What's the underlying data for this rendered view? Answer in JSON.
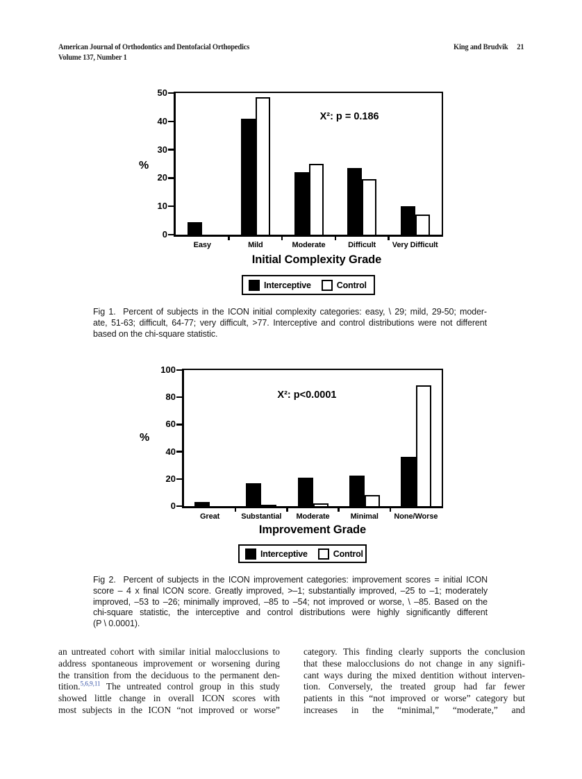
{
  "header": {
    "journal": "American Journal of Orthodontics and Dentofacial Orthopedics",
    "volume": "Volume 137, Number 1",
    "running_head": "King and Brudvik",
    "page_number": "21"
  },
  "chart_data": [
    {
      "type": "bar",
      "categories": [
        "Easy",
        "Mild",
        "Moderate",
        "Difficult",
        "Very Difficult"
      ],
      "series": [
        {
          "name": "Interceptive",
          "values": [
            4.5,
            41,
            22,
            23.5,
            10
          ]
        },
        {
          "name": "Control",
          "values": [
            0,
            48.5,
            25,
            19.5,
            7
          ]
        }
      ],
      "annotation": "X²: p = 0.186",
      "xlabel": "Initial Complexity Grade",
      "ylabel": "%",
      "ylim": [
        0,
        50
      ],
      "yticks": [
        0,
        10,
        20,
        30,
        40,
        50
      ],
      "legend_position": "bottom",
      "grid": false,
      "colors": {
        "Interceptive": "#000000",
        "Control": "#ffffff"
      }
    },
    {
      "type": "bar",
      "categories": [
        "Great",
        "Substantial",
        "Moderate",
        "Minimal",
        "None/Worse"
      ],
      "series": [
        {
          "name": "Interceptive",
          "values": [
            3,
            17,
            21,
            22.5,
            36
          ]
        },
        {
          "name": "Control",
          "values": [
            0,
            1,
            2,
            8,
            89
          ]
        }
      ],
      "annotation": "X²: p<0.0001",
      "xlabel": "Improvement Grade",
      "ylabel": "%",
      "ylim": [
        0,
        100
      ],
      "yticks": [
        0,
        20,
        40,
        60,
        80,
        100
      ],
      "legend_position": "bottom",
      "grid": false,
      "colors": {
        "Interceptive": "#000000",
        "Control": "#ffffff"
      }
    }
  ],
  "figures": {
    "fig1_caption_lines": [
      "Fig 1.  Percent of subjects in the ICON initial complexity categories: easy, \\ 29; mild, 29-50; moder-",
      "ate, 51-63; difficult, 64-77; very difficult, >77. Interceptive and control distributions were not different",
      "based on the chi-square statistic."
    ],
    "fig2_caption_lines": [
      "Fig 2.  Percent of subjects in the ICON improvement categories: improvement scores = initial ICON",
      "score – 4 x final ICON score. Greatly improved, >–1; substantially improved, –25 to –1; moderately",
      "improved, –53 to –26; minimally improved, –85 to –54; not improved or worse, \\ –85. Based on the",
      "chi-square statistic, the interceptive and control distributions were highly significantly different",
      "(P \\ 0.0001)."
    ]
  },
  "body": {
    "left_column": [
      "an untreated cohort with similar initial malocclusions to",
      "address spontaneous improvement or worsening during",
      "the transition from the deciduous to the permanent den-",
      "tition.^{5,6,9,11} The untreated control group in this study",
      "showed little change in overall ICON scores with",
      "most subjects in the ICON “not improved or worse”"
    ],
    "right_column": [
      "category. This finding clearly supports the conclusion",
      "that these malocclusions do not change in any signifi-",
      "cant ways during the mixed dentition without interven-",
      "tion. Conversely, the treated group had far fewer",
      "patients in this “not improved or worse” category but",
      "increases in the “minimal,” “moderate,” and"
    ]
  }
}
